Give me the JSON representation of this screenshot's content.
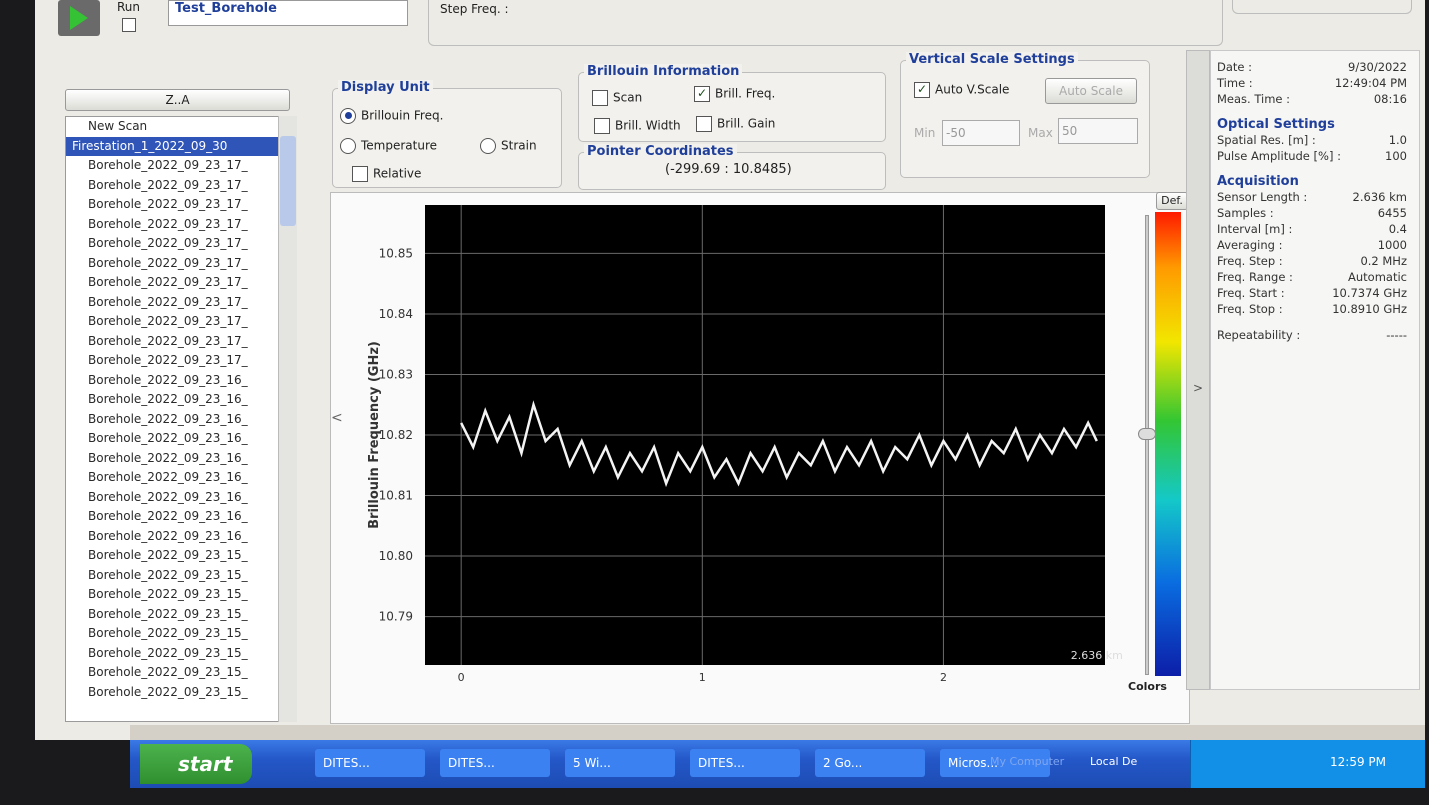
{
  "toolbar": {
    "run": "Run",
    "scan_name": "Test_Borehole",
    "step_freq": "Step Freq. :"
  },
  "scan_list": {
    "sort": "Z..A",
    "items": [
      "New Scan",
      "Firestation_1_2022_09_30",
      "Borehole_2022_09_23_17_",
      "Borehole_2022_09_23_17_",
      "Borehole_2022_09_23_17_",
      "Borehole_2022_09_23_17_",
      "Borehole_2022_09_23_17_",
      "Borehole_2022_09_23_17_",
      "Borehole_2022_09_23_17_",
      "Borehole_2022_09_23_17_",
      "Borehole_2022_09_23_17_",
      "Borehole_2022_09_23_17_",
      "Borehole_2022_09_23_17_",
      "Borehole_2022_09_23_16_",
      "Borehole_2022_09_23_16_",
      "Borehole_2022_09_23_16_",
      "Borehole_2022_09_23_16_",
      "Borehole_2022_09_23_16_",
      "Borehole_2022_09_23_16_",
      "Borehole_2022_09_23_16_",
      "Borehole_2022_09_23_16_",
      "Borehole_2022_09_23_16_",
      "Borehole_2022_09_23_15_",
      "Borehole_2022_09_23_15_",
      "Borehole_2022_09_23_15_",
      "Borehole_2022_09_23_15_",
      "Borehole_2022_09_23_15_",
      "Borehole_2022_09_23_15_",
      "Borehole_2022_09_23_15_",
      "Borehole_2022_09_23_15_"
    ],
    "selected": 1
  },
  "display_unit": {
    "title": "Display Unit",
    "options": [
      {
        "label": "Brillouin Freq.",
        "selected": true
      },
      {
        "label": "Temperature",
        "selected": false
      },
      {
        "label": "Strain",
        "selected": false
      }
    ],
    "relative": {
      "label": "Relative",
      "checked": false
    }
  },
  "brillouin_information": {
    "title": "Brillouin Information",
    "options": [
      {
        "label": "Scan",
        "checked": false
      },
      {
        "label": "Brill. Freq.",
        "checked": true
      },
      {
        "label": "Brill. Width",
        "checked": false
      },
      {
        "label": "Brill. Gain",
        "checked": false
      }
    ]
  },
  "pointer_coordinates": {
    "title": "Pointer Coordinates",
    "value": "(-299.69 : 10.8485)"
  },
  "vertical_scale": {
    "title": "Vertical Scale Settings",
    "auto": {
      "label": "Auto V.Scale",
      "checked": true
    },
    "button": "Auto Scale",
    "min_label": "Min",
    "min": -50,
    "max_label": "Max",
    "max": 50
  },
  "info": {
    "summary": [
      {
        "label": "Date :",
        "value": "9/30/2022"
      },
      {
        "label": "Time :",
        "value": "12:49:04 PM"
      },
      {
        "label": "Meas. Time :",
        "value": "08:16"
      }
    ],
    "sections": [
      {
        "title": "Optical Settings",
        "rows": [
          {
            "label": "Spatial Res. [m] :",
            "value": "1.0"
          },
          {
            "label": "Pulse Amplitude [%] :",
            "value": "100"
          }
        ]
      },
      {
        "title": "Acquisition",
        "rows": [
          {
            "label": "Sensor Length :",
            "value": "2.636 km"
          },
          {
            "label": "Samples :",
            "value": "6455"
          },
          {
            "label": "Interval [m] :",
            "value": "0.4"
          },
          {
            "label": "Averaging :",
            "value": "1000"
          },
          {
            "label": "Freq. Step :",
            "value": "0.2 MHz"
          },
          {
            "label": "Freq. Range :",
            "value": "Automatic"
          },
          {
            "label": "Freq. Start :",
            "value": "10.7374 GHz"
          },
          {
            "label": "Freq. Stop :",
            "value": "10.8910 GHz"
          }
        ]
      },
      {
        "title": null,
        "rows": [
          {
            "label": "Repeatability :",
            "value": "-----"
          }
        ]
      }
    ]
  },
  "colorbar": {
    "button": "Def.",
    "label": "Colors"
  },
  "chart_data": {
    "type": "line",
    "y_label": "Brillouin Frequency (GHz)",
    "xlim": [
      -0.15,
      2.67
    ],
    "ylim": [
      10.782,
      10.858
    ],
    "xticks": [
      0,
      1,
      2,
      {
        "value": 2.636,
        "label": "2.636 km"
      }
    ],
    "yticks": [
      10.79,
      10.8,
      10.81,
      10.82,
      10.83,
      10.84,
      10.85
    ],
    "ytick_labels": [
      "10.79",
      "10.80",
      "10.81",
      "10.82",
      "10.83",
      "10.84",
      "10.85"
    ],
    "grid": true,
    "background": "#000000",
    "x": [
      0,
      0.05,
      0.1,
      0.15,
      0.2,
      0.25,
      0.3,
      0.35,
      0.4,
      0.45,
      0.5,
      0.55,
      0.6,
      0.65,
      0.7,
      0.75,
      0.8,
      0.85,
      0.9,
      0.95,
      1,
      1.05,
      1.1,
      1.15,
      1.2,
      1.25,
      1.3,
      1.35,
      1.4,
      1.45,
      1.5,
      1.55,
      1.6,
      1.65,
      1.7,
      1.75,
      1.8,
      1.85,
      1.9,
      1.95,
      2,
      2.05,
      2.1,
      2.15,
      2.2,
      2.25,
      2.3,
      2.35,
      2.4,
      2.45,
      2.5,
      2.55,
      2.6,
      2.636
    ],
    "series": [
      {
        "name": "Brill. Freq.",
        "color": "#f4f4f4",
        "values": [
          10.822,
          10.818,
          10.824,
          10.819,
          10.823,
          10.817,
          10.825,
          10.819,
          10.821,
          10.815,
          10.819,
          10.814,
          10.818,
          10.813,
          10.817,
          10.814,
          10.818,
          10.812,
          10.817,
          10.814,
          10.818,
          10.813,
          10.816,
          10.812,
          10.817,
          10.814,
          10.818,
          10.813,
          10.817,
          10.815,
          10.819,
          10.814,
          10.818,
          10.815,
          10.819,
          10.814,
          10.818,
          10.816,
          10.82,
          10.815,
          10.819,
          10.816,
          10.82,
          10.815,
          10.819,
          10.817,
          10.821,
          10.816,
          10.82,
          10.817,
          10.821,
          10.818,
          10.822,
          10.819
        ]
      }
    ]
  },
  "taskbar": {
    "start": "start",
    "items": [
      "DITES...",
      "DITES...",
      "5 Wi...",
      "DITES...",
      "2 Go...",
      "Micros..."
    ],
    "tray": [
      "My Computer",
      "Local De"
    ],
    "clock": "12:59 PM"
  }
}
